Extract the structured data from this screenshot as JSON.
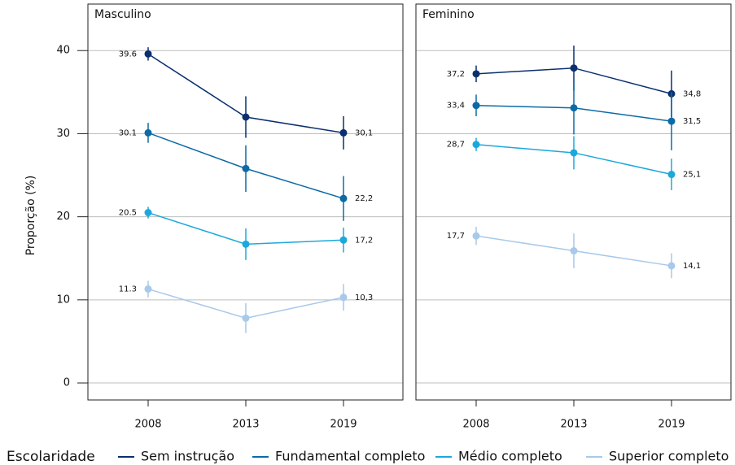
{
  "chart_data": [
    {
      "type": "line",
      "title": "Masculino",
      "ylabel": "Proporção (%)",
      "legend_title": "Escolaridade",
      "categories": [
        "2008",
        "2013",
        "2019"
      ],
      "ylim": [
        -2.05,
        45.6
      ],
      "yticks": [
        0,
        10,
        20,
        30,
        40
      ],
      "grid": true,
      "series": [
        {
          "name": "Sem instrução",
          "color": "#0b2f6f",
          "values": [
            39.6,
            32.0,
            30.1
          ],
          "errors": [
            0.8,
            2.5,
            2.0
          ],
          "value_labels": [
            "39.6",
            null,
            "30,1"
          ]
        },
        {
          "name": "Fundamental completo",
          "color": "#0c6aa6",
          "values": [
            30.1,
            25.8,
            22.2
          ],
          "errors": [
            1.2,
            2.8,
            2.7
          ],
          "value_labels": [
            "30.1",
            null,
            "22,2"
          ]
        },
        {
          "name": "Médio completo",
          "color": "#1ca8dd",
          "values": [
            20.5,
            16.7,
            17.2
          ],
          "errors": [
            0.7,
            1.9,
            1.5
          ],
          "value_labels": [
            "20.5",
            null,
            "17,2"
          ]
        },
        {
          "name": "Superior completo",
          "color": "#a8c9e9",
          "values": [
            11.3,
            7.8,
            10.3
          ],
          "errors": [
            1.0,
            1.8,
            1.6
          ],
          "value_labels": [
            "11.3",
            null,
            "10,3"
          ]
        }
      ]
    },
    {
      "type": "line",
      "title": "Feminino",
      "categories": [
        "2008",
        "2013",
        "2019"
      ],
      "ylim": [
        -2.05,
        45.6
      ],
      "yticks": [
        0,
        10,
        20,
        30,
        40
      ],
      "grid": true,
      "series": [
        {
          "name": "Sem instrução",
          "color": "#0b2f6f",
          "values": [
            37.2,
            37.9,
            34.8
          ],
          "errors": [
            1.0,
            2.7,
            2.8
          ],
          "value_labels": [
            "37,2",
            null,
            "34,8"
          ]
        },
        {
          "name": "Fundamental completo",
          "color": "#0c6aa6",
          "values": [
            33.4,
            33.1,
            31.5
          ],
          "errors": [
            1.3,
            3.2,
            3.5
          ],
          "value_labels": [
            "33,4",
            null,
            "31,5"
          ]
        },
        {
          "name": "Médio completo",
          "color": "#1ca8dd",
          "values": [
            28.7,
            27.7,
            25.1
          ],
          "errors": [
            0.8,
            2.0,
            1.9
          ],
          "value_labels": [
            "28,7",
            null,
            "25,1"
          ]
        },
        {
          "name": "Superior completo",
          "color": "#a8c9e9",
          "values": [
            17.7,
            15.9,
            14.1
          ],
          "errors": [
            1.1,
            2.1,
            1.5
          ],
          "value_labels": [
            "17,7",
            null,
            "14,1"
          ]
        }
      ]
    }
  ]
}
